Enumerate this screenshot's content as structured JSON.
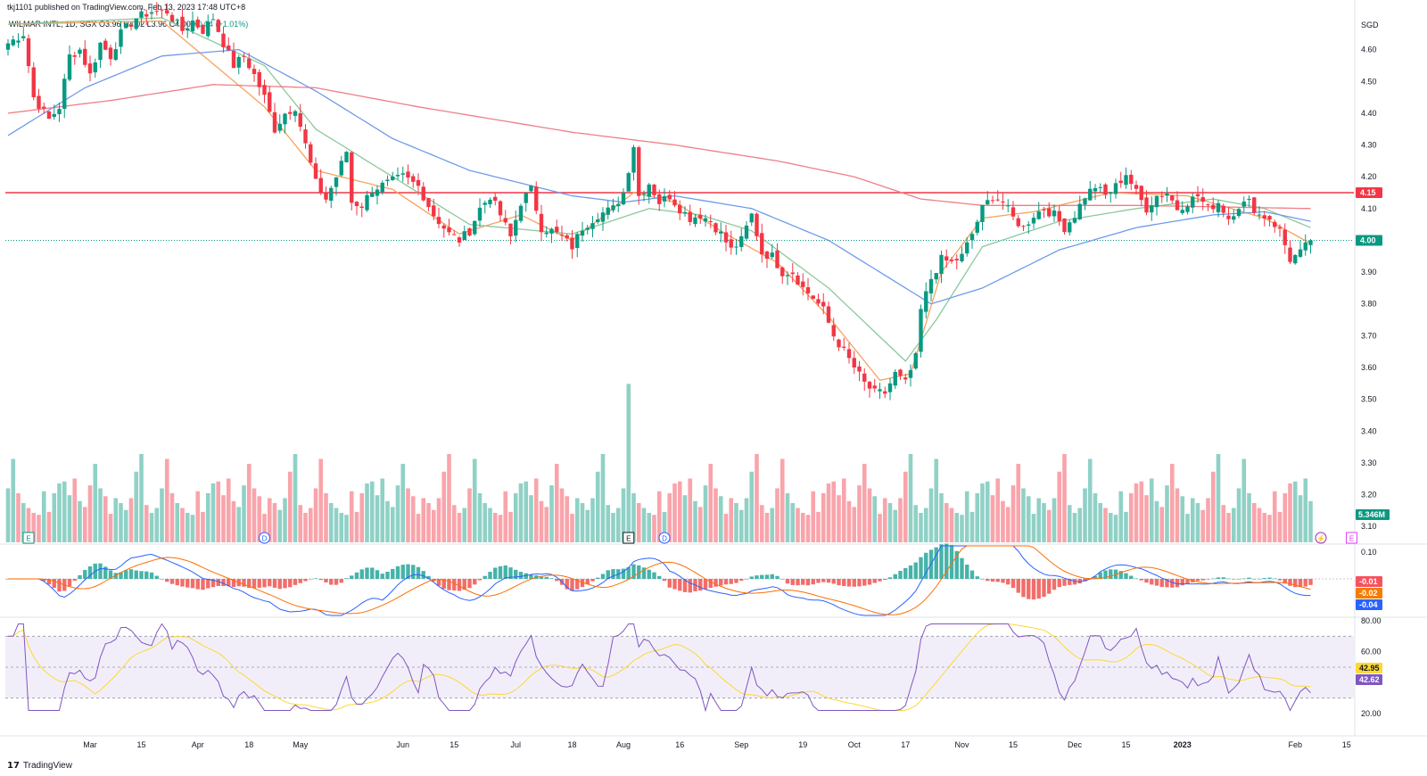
{
  "header": {
    "publisher": "tkj1101 published on TradingView.com, Feb 13, 2023 17:48 UTC+8",
    "symbol": "WILMAR INTL, 1D, SGX",
    "open": "O3.96",
    "high": "H4.02",
    "low": "L3.96",
    "close": "C4.00",
    "change": "+0.04 (+1.01%)"
  },
  "footer": {
    "logo_text": "TradingView"
  },
  "chart_data": {
    "type": "candlestick",
    "currency_label": "SGD",
    "price_axis": {
      "range": [
        3.05,
        4.7
      ],
      "ticks": [
        4.6,
        4.5,
        4.4,
        4.3,
        4.2,
        4.1,
        4.0,
        3.9,
        3.8,
        3.7,
        3.6,
        3.5,
        3.4,
        3.3,
        3.2,
        3.1
      ]
    },
    "time_axis_labels": [
      {
        "label": "Mar",
        "day": 16
      },
      {
        "label": "15",
        "day": 26
      },
      {
        "label": "Apr",
        "day": 37
      },
      {
        "label": "18",
        "day": 47
      },
      {
        "label": "May",
        "day": 57
      },
      {
        "label": "Jun",
        "day": 77
      },
      {
        "label": "15",
        "day": 87
      },
      {
        "label": "Jul",
        "day": 99
      },
      {
        "label": "18",
        "day": 110
      },
      {
        "label": "Aug",
        "day": 120
      },
      {
        "label": "16",
        "day": 131
      },
      {
        "label": "Sep",
        "day": 143
      },
      {
        "label": "19",
        "day": 155
      },
      {
        "label": "Oct",
        "day": 165
      },
      {
        "label": "17",
        "day": 175
      },
      {
        "label": "Nov",
        "day": 186
      },
      {
        "label": "15",
        "day": 196
      },
      {
        "label": "Dec",
        "day": 208
      },
      {
        "label": "15",
        "day": 218
      },
      {
        "label": "2023",
        "day": 229
      },
      {
        "label": "Feb",
        "day": 251
      },
      {
        "label": "15",
        "day": 261
      }
    ],
    "price_anchors": [
      [
        0,
        4.62
      ],
      [
        3,
        4.65
      ],
      [
        5,
        4.45
      ],
      [
        8,
        4.38
      ],
      [
        10,
        4.42
      ],
      [
        12,
        4.58
      ],
      [
        14,
        4.6
      ],
      [
        16,
        4.52
      ],
      [
        18,
        4.62
      ],
      [
        20,
        4.58
      ],
      [
        22,
        4.65
      ],
      [
        25,
        4.7
      ],
      [
        28,
        4.72
      ],
      [
        31,
        4.72
      ],
      [
        34,
        4.66
      ],
      [
        36,
        4.69
      ],
      [
        38,
        4.66
      ],
      [
        40,
        4.7
      ],
      [
        42,
        4.62
      ],
      [
        44,
        4.55
      ],
      [
        46,
        4.58
      ],
      [
        48,
        4.52
      ],
      [
        50,
        4.45
      ],
      [
        52,
        4.35
      ],
      [
        54,
        4.4
      ],
      [
        56,
        4.42
      ],
      [
        58,
        4.3
      ],
      [
        60,
        4.18
      ],
      [
        62,
        4.13
      ],
      [
        64,
        4.2
      ],
      [
        66,
        4.28
      ],
      [
        67,
        4.12
      ],
      [
        69,
        4.11
      ],
      [
        71,
        4.16
      ],
      [
        74,
        4.18
      ],
      [
        77,
        4.2
      ],
      [
        80,
        4.17
      ],
      [
        83,
        4.08
      ],
      [
        86,
        4.02
      ],
      [
        88,
        4.0
      ],
      [
        90,
        4.03
      ],
      [
        92,
        4.1
      ],
      [
        94,
        4.14
      ],
      [
        96,
        4.08
      ],
      [
        98,
        4.01
      ],
      [
        100,
        4.12
      ],
      [
        102,
        4.16
      ],
      [
        104,
        4.04
      ],
      [
        106,
        4.03
      ],
      [
        108,
        4.01
      ],
      [
        110,
        3.98
      ],
      [
        112,
        4.04
      ],
      [
        115,
        4.08
      ],
      [
        118,
        4.1
      ],
      [
        120,
        4.15
      ],
      [
        122,
        4.3
      ],
      [
        123,
        4.14
      ],
      [
        125,
        4.18
      ],
      [
        127,
        4.12
      ],
      [
        129,
        4.14
      ],
      [
        131,
        4.1
      ],
      [
        133,
        4.07
      ],
      [
        135,
        4.08
      ],
      [
        137,
        4.06
      ],
      [
        139,
        4.02
      ],
      [
        141,
        3.97
      ],
      [
        143,
        4.0
      ],
      [
        145,
        4.08
      ],
      [
        147,
        3.96
      ],
      [
        149,
        3.95
      ],
      [
        151,
        3.9
      ],
      [
        153,
        3.9
      ],
      [
        155,
        3.85
      ],
      [
        157,
        3.82
      ],
      [
        159,
        3.78
      ],
      [
        161,
        3.7
      ],
      [
        163,
        3.65
      ],
      [
        165,
        3.6
      ],
      [
        167,
        3.55
      ],
      [
        169,
        3.52
      ],
      [
        171,
        3.52
      ],
      [
        173,
        3.58
      ],
      [
        175,
        3.55
      ],
      [
        177,
        3.63
      ],
      [
        178,
        3.78
      ],
      [
        180,
        3.88
      ],
      [
        182,
        3.94
      ],
      [
        184,
        3.93
      ],
      [
        186,
        3.95
      ],
      [
        188,
        4.02
      ],
      [
        190,
        4.1
      ],
      [
        192,
        4.14
      ],
      [
        194,
        4.12
      ],
      [
        196,
        4.07
      ],
      [
        198,
        4.04
      ],
      [
        200,
        4.08
      ],
      [
        202,
        4.1
      ],
      [
        204,
        4.08
      ],
      [
        206,
        4.04
      ],
      [
        208,
        4.08
      ],
      [
        210,
        4.14
      ],
      [
        212,
        4.17
      ],
      [
        214,
        4.14
      ],
      [
        216,
        4.17
      ],
      [
        218,
        4.21
      ],
      [
        220,
        4.15
      ],
      [
        222,
        4.1
      ],
      [
        224,
        4.14
      ],
      [
        226,
        4.15
      ],
      [
        228,
        4.1
      ],
      [
        230,
        4.12
      ],
      [
        232,
        4.14
      ],
      [
        234,
        4.1
      ],
      [
        236,
        4.12
      ],
      [
        238,
        4.07
      ],
      [
        240,
        4.11
      ],
      [
        242,
        4.12
      ],
      [
        244,
        4.08
      ],
      [
        246,
        4.07
      ],
      [
        248,
        4.03
      ],
      [
        250,
        3.94
      ],
      [
        252,
        3.96
      ],
      [
        254,
        4.0
      ]
    ],
    "overlays": {
      "ema_short_orange": [
        [
          0,
          4.68
        ],
        [
          30,
          4.69
        ],
        [
          50,
          4.42
        ],
        [
          60,
          4.22
        ],
        [
          75,
          4.16
        ],
        [
          88,
          4.02
        ],
        [
          100,
          4.08
        ],
        [
          110,
          4.0
        ],
        [
          122,
          4.15
        ],
        [
          130,
          4.12
        ],
        [
          140,
          4.02
        ],
        [
          150,
          3.93
        ],
        [
          160,
          3.76
        ],
        [
          170,
          3.56
        ],
        [
          176,
          3.58
        ],
        [
          182,
          3.9
        ],
        [
          190,
          4.07
        ],
        [
          200,
          4.09
        ],
        [
          215,
          4.15
        ],
        [
          230,
          4.14
        ],
        [
          245,
          4.07
        ],
        [
          254,
          3.99
        ]
      ],
      "ma_green": [
        [
          0,
          4.68
        ],
        [
          30,
          4.7
        ],
        [
          50,
          4.55
        ],
        [
          60,
          4.35
        ],
        [
          75,
          4.2
        ],
        [
          90,
          4.05
        ],
        [
          110,
          4.02
        ],
        [
          125,
          4.1
        ],
        [
          135,
          4.08
        ],
        [
          145,
          4.03
        ],
        [
          160,
          3.85
        ],
        [
          175,
          3.62
        ],
        [
          181,
          3.75
        ],
        [
          190,
          3.98
        ],
        [
          205,
          4.06
        ],
        [
          220,
          4.1
        ],
        [
          235,
          4.13
        ],
        [
          245,
          4.1
        ],
        [
          254,
          4.04
        ]
      ],
      "ma_blue": [
        [
          0,
          4.33
        ],
        [
          15,
          4.48
        ],
        [
          30,
          4.58
        ],
        [
          45,
          4.6
        ],
        [
          60,
          4.47
        ],
        [
          75,
          4.32
        ],
        [
          90,
          4.22
        ],
        [
          110,
          4.14
        ],
        [
          120,
          4.12
        ],
        [
          130,
          4.14
        ],
        [
          145,
          4.1
        ],
        [
          160,
          4.0
        ],
        [
          172,
          3.88
        ],
        [
          180,
          3.8
        ],
        [
          190,
          3.85
        ],
        [
          205,
          3.97
        ],
        [
          220,
          4.04
        ],
        [
          235,
          4.08
        ],
        [
          245,
          4.09
        ],
        [
          254,
          4.06
        ]
      ],
      "ma_red_long": [
        [
          0,
          4.4
        ],
        [
          20,
          4.44
        ],
        [
          40,
          4.49
        ],
        [
          60,
          4.48
        ],
        [
          80,
          4.42
        ],
        [
          110,
          4.34
        ],
        [
          130,
          4.3
        ],
        [
          150,
          4.25
        ],
        [
          165,
          4.2
        ],
        [
          178,
          4.13
        ],
        [
          190,
          4.11
        ],
        [
          220,
          4.11
        ],
        [
          254,
          4.1
        ]
      ]
    },
    "volume_pattern": [
      0.45,
      0.35,
      0.8,
      0.55,
      0.65,
      0.9,
      0.5,
      0.4,
      0.3,
      0.55,
      0.85,
      0.42,
      0.38,
      0.6,
      0.33,
      0.28,
      0.47,
      0.5,
      0.36,
      0.3,
      0.62,
      0.45,
      0.52,
      0.29,
      0.4,
      0.58,
      0.35,
      0.48,
      0.72,
      0.31
    ],
    "volume_label": "5.346M",
    "markers": [
      {
        "text": "E",
        "day": 4,
        "color": "#089981"
      },
      {
        "text": "D",
        "day": 50,
        "color": "#2962ff"
      },
      {
        "text": "E",
        "day": 121,
        "color": "#131722"
      },
      {
        "text": "D",
        "day": 128,
        "color": "#2962ff"
      },
      {
        "text": "⚡",
        "day": 256,
        "color": "#9c27b0"
      },
      {
        "text": "E",
        "day": 262,
        "color": "#e040fb"
      }
    ],
    "horizontal_levels": [
      {
        "price": 4.15,
        "label": "4.15",
        "color": "#f23645",
        "style": "solid"
      },
      {
        "price": 4.0,
        "label": "4.00",
        "color": "#089981",
        "style": "dotted"
      }
    ],
    "macd": {
      "ticks": [
        "0.10"
      ],
      "last_labels": [
        {
          "value": "-0.01",
          "color": "#f7525f"
        },
        {
          "value": "-0.02",
          "color": "#f57c00"
        },
        {
          "value": "-0.04",
          "color": "#2962ff"
        }
      ]
    },
    "rsi": {
      "ticks": [
        "80.00",
        "60.00",
        "20.00"
      ],
      "levels": [
        70,
        50,
        30
      ],
      "last_labels": [
        {
          "value": "42.95",
          "color": "#fdd835"
        },
        {
          "value": "42.62",
          "color": "#7e57c2"
        }
      ]
    }
  }
}
